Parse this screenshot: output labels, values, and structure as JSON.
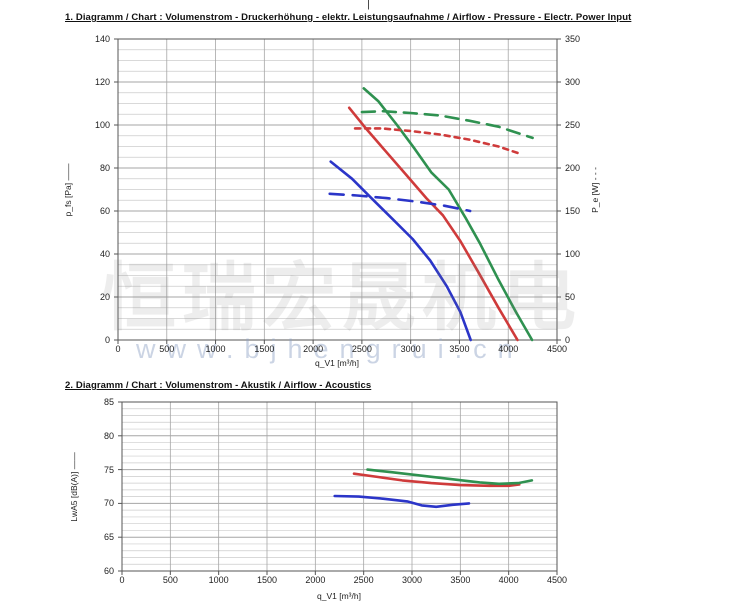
{
  "page": {
    "fold_mark": "|",
    "watermark": {
      "cjk_text": "恒瑞宏晟机电",
      "url_text": "www.bjhengrui.cn"
    },
    "colors": {
      "blue": "#2b35c8",
      "red": "#cf3b3b",
      "green": "#2f9150",
      "grid_minor": "#cccccc",
      "grid_major": "#a6a6a6",
      "frame": "#555555"
    }
  },
  "chart_data": [
    {
      "type": "line",
      "title": "1. Diagramm / Chart :   Volumenstrom - Druckerhöhung - elektr. Leistungsaufnahme / Airflow - Pressure - Electr. Power Input",
      "xlabel": "q_V1 [m³/h]",
      "xlim": [
        0,
        4500
      ],
      "xticks": [
        0,
        500,
        1000,
        1500,
        2000,
        2500,
        3000,
        3500,
        4000,
        4500
      ],
      "grid": true,
      "legend_position": "none",
      "left_axis": {
        "label": "p_fs [Pa]",
        "marker": "——",
        "lim": [
          0,
          140
        ],
        "ticks": [
          0,
          20,
          40,
          60,
          80,
          100,
          120,
          140
        ],
        "minor_step": 5
      },
      "right_axis": {
        "label": "P_e [W]",
        "marker": "- - -",
        "lim": [
          0,
          350
        ],
        "ticks": [
          0,
          50,
          100,
          150,
          200,
          250,
          300,
          350
        ]
      },
      "series": [
        {
          "name": "pressure-blue",
          "axis": "left",
          "color": "blue",
          "dash": "",
          "points": [
            [
              2180,
              83
            ],
            [
              2400,
              75
            ],
            [
              2620,
              65
            ],
            [
              2820,
              56
            ],
            [
              3020,
              47
            ],
            [
              3200,
              37
            ],
            [
              3370,
              25
            ],
            [
              3510,
              13
            ],
            [
              3615,
              0
            ]
          ]
        },
        {
          "name": "pressure-red",
          "axis": "left",
          "color": "red",
          "dash": "",
          "points": [
            [
              2370,
              108
            ],
            [
              2530,
              99
            ],
            [
              2740,
              88
            ],
            [
              2950,
              77
            ],
            [
              3160,
              66
            ],
            [
              3330,
              58
            ],
            [
              3510,
              46
            ],
            [
              3700,
              31
            ],
            [
              3900,
              15
            ],
            [
              4095,
              0
            ]
          ]
        },
        {
          "name": "pressure-green",
          "axis": "left",
          "color": "green",
          "dash": "",
          "points": [
            [
              2520,
              117
            ],
            [
              2670,
              111
            ],
            [
              2860,
              100
            ],
            [
              3040,
              89
            ],
            [
              3210,
              78
            ],
            [
              3390,
              70
            ],
            [
              3560,
              57
            ],
            [
              3710,
              45
            ],
            [
              3900,
              28
            ],
            [
              4080,
              13
            ],
            [
              4245,
              0
            ]
          ]
        },
        {
          "name": "power-blue",
          "axis": "right",
          "color": "blue",
          "dash": "14 9",
          "points": [
            [
              2170,
              170
            ],
            [
              2450,
              168
            ],
            [
              2750,
              165
            ],
            [
              3050,
              161
            ],
            [
              3350,
              156
            ],
            [
              3610,
              150
            ]
          ]
        },
        {
          "name": "power-red",
          "axis": "right",
          "color": "red",
          "dash": "5 5",
          "points": [
            [
              2430,
              246
            ],
            [
              2700,
              246
            ],
            [
              3000,
              243
            ],
            [
              3300,
              239
            ],
            [
              3600,
              233
            ],
            [
              3900,
              225
            ],
            [
              4110,
              217
            ]
          ]
        },
        {
          "name": "power-green",
          "axis": "right",
          "color": "green",
          "dash": "13 8",
          "points": [
            [
              2500,
              265
            ],
            [
              2720,
              266
            ],
            [
              3000,
              264
            ],
            [
              3300,
              261
            ],
            [
              3600,
              255
            ],
            [
              3900,
              248
            ],
            [
              4250,
              235
            ]
          ]
        }
      ]
    },
    {
      "type": "line",
      "title": "2. Diagramm / Chart :   Volumenstrom - Akustik / Airflow - Acoustics",
      "xlabel": "q_V1 [m³/h]",
      "xlim": [
        0,
        4500
      ],
      "xticks": [
        0,
        500,
        1000,
        1500,
        2000,
        2500,
        3000,
        3500,
        4000,
        4500
      ],
      "grid": true,
      "legend_position": "none",
      "left_axis": {
        "label": "LwA5 [dB(A)]",
        "marker": "——",
        "lim": [
          60,
          85
        ],
        "ticks": [
          60,
          65,
          70,
          75,
          80,
          85
        ],
        "minor_step": 1
      },
      "series": [
        {
          "name": "noise-blue",
          "axis": "left",
          "color": "blue",
          "dash": "",
          "points": [
            [
              2200,
              71.1
            ],
            [
              2450,
              71.0
            ],
            [
              2700,
              70.7
            ],
            [
              2950,
              70.3
            ],
            [
              3100,
              69.7
            ],
            [
              3250,
              69.5
            ],
            [
              3420,
              69.8
            ],
            [
              3590,
              70.0
            ]
          ]
        },
        {
          "name": "noise-red",
          "axis": "left",
          "color": "red",
          "dash": "",
          "points": [
            [
              2400,
              74.4
            ],
            [
              2650,
              73.9
            ],
            [
              2900,
              73.4
            ],
            [
              3200,
              73.0
            ],
            [
              3500,
              72.7
            ],
            [
              3800,
              72.6
            ],
            [
              4000,
              72.6
            ],
            [
              4110,
              72.8
            ]
          ]
        },
        {
          "name": "noise-green",
          "axis": "left",
          "color": "green",
          "dash": "",
          "points": [
            [
              2540,
              75.0
            ],
            [
              2800,
              74.6
            ],
            [
              3100,
              74.1
            ],
            [
              3400,
              73.6
            ],
            [
              3700,
              73.1
            ],
            [
              3900,
              72.9
            ],
            [
              4100,
              73.0
            ],
            [
              4240,
              73.4
            ]
          ]
        }
      ]
    }
  ]
}
